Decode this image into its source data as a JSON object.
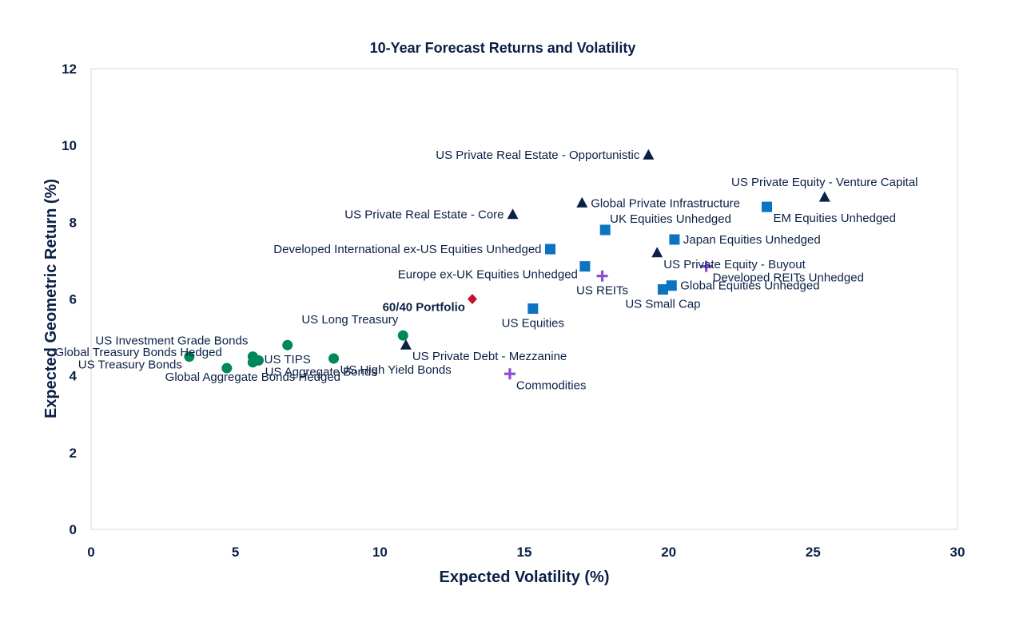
{
  "chart_data": {
    "type": "scatter",
    "title": "10-Year Forecast Returns and Volatility",
    "xlabel": "Expected Volatility (%)",
    "ylabel": "Expected Geometric Return (%)",
    "xlim": [
      0,
      30
    ],
    "ylim": [
      0,
      12
    ],
    "xticks": [
      "0",
      "5",
      "10",
      "15",
      "20",
      "25",
      "30"
    ],
    "yticks": [
      "0",
      "2",
      "4",
      "6",
      "8",
      "10",
      "12"
    ],
    "grid": false,
    "legend": "none",
    "marker_colors": {
      "circle": "#00875a",
      "square": "#0a73c2",
      "triangle": "#0b2046",
      "plus": "#8a4fd8",
      "diamond": "#c8102e"
    },
    "points": [
      {
        "label": "US Treasury Bonds",
        "x": 3.4,
        "y": 4.5,
        "marker": "circle",
        "label_pos": "below-left"
      },
      {
        "label": "Global Treasury Bonds Hedged",
        "x": 4.7,
        "y": 4.2,
        "marker": "circle",
        "label_pos": "above-left"
      },
      {
        "label": "US Investment Grade Bonds",
        "x": 5.6,
        "y": 4.5,
        "marker": "circle",
        "label_pos": "above-left"
      },
      {
        "label": "Global Aggregate Bonds Hedged",
        "x": 5.6,
        "y": 4.35,
        "marker": "circle",
        "label_pos": "below"
      },
      {
        "label": "US Aggregate Bonds",
        "x": 5.8,
        "y": 4.4,
        "marker": "circle",
        "label_pos": "below-right"
      },
      {
        "label": "US TIPS",
        "x": 6.8,
        "y": 4.8,
        "marker": "circle",
        "label_pos": "below"
      },
      {
        "label": "US High Yield Bonds",
        "x": 8.4,
        "y": 4.45,
        "marker": "circle",
        "label_pos": "below-right"
      },
      {
        "label": "US Long Treasury",
        "x": 10.8,
        "y": 5.05,
        "marker": "circle",
        "label_pos": "above-left"
      },
      {
        "label": "US Private Debt - Mezzanine",
        "x": 10.9,
        "y": 4.8,
        "marker": "triangle",
        "label_pos": "below-right"
      },
      {
        "label": "60/40 Portfolio",
        "x": 13.2,
        "y": 6.0,
        "marker": "diamond",
        "label_pos": "below-left"
      },
      {
        "label": "Commodities",
        "x": 14.5,
        "y": 4.05,
        "marker": "plus",
        "label_pos": "below-right"
      },
      {
        "label": "US Private Real Estate - Core",
        "x": 14.6,
        "y": 8.2,
        "marker": "triangle",
        "label_pos": "left"
      },
      {
        "label": "US Equities",
        "x": 15.3,
        "y": 5.75,
        "marker": "square",
        "label_pos": "below"
      },
      {
        "label": "Developed International ex-US Equities Unhedged",
        "x": 15.9,
        "y": 7.3,
        "marker": "square",
        "label_pos": "left"
      },
      {
        "label": "Global Private Infrastructure",
        "x": 17.0,
        "y": 8.5,
        "marker": "triangle",
        "label_pos": "right"
      },
      {
        "label": "Europe ex-UK Equities Unhedged",
        "x": 17.1,
        "y": 6.85,
        "marker": "square",
        "label_pos": "below-left"
      },
      {
        "label": "US REITs",
        "x": 17.7,
        "y": 6.6,
        "marker": "plus",
        "label_pos": "below"
      },
      {
        "label": "UK Equities Unhedged",
        "x": 17.8,
        "y": 7.8,
        "marker": "square",
        "label_pos": "above-right"
      },
      {
        "label": "US Private Real Estate - Opportunistic",
        "x": 19.3,
        "y": 9.75,
        "marker": "triangle",
        "label_pos": "left"
      },
      {
        "label": "US Private Equity - Buyout",
        "x": 19.6,
        "y": 7.2,
        "marker": "triangle",
        "label_pos": "below-right"
      },
      {
        "label": "US Small Cap",
        "x": 19.8,
        "y": 6.25,
        "marker": "square",
        "label_pos": "below"
      },
      {
        "label": "Global Equities Unhedged",
        "x": 20.1,
        "y": 6.35,
        "marker": "square",
        "label_pos": "right"
      },
      {
        "label": "Japan Equities Unhedged",
        "x": 20.2,
        "y": 7.55,
        "marker": "square",
        "label_pos": "right"
      },
      {
        "label": "Developed REITs Unhedged",
        "x": 21.3,
        "y": 6.85,
        "marker": "plus",
        "label_pos": "below-right"
      },
      {
        "label": "EM Equities Unhedged",
        "x": 23.4,
        "y": 8.4,
        "marker": "square",
        "label_pos": "below-right"
      },
      {
        "label": "US Private Equity - Venture Capital",
        "x": 25.4,
        "y": 8.65,
        "marker": "triangle",
        "label_pos": "above"
      }
    ]
  }
}
